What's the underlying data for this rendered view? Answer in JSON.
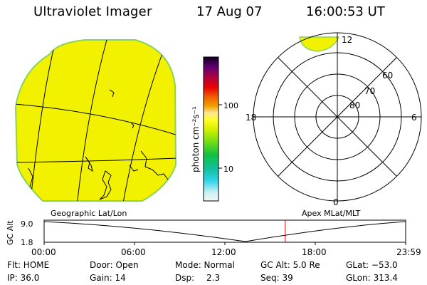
{
  "header": {
    "title": "Ultraviolet Imager",
    "date": "17 Aug 07",
    "time": "16:00:53 UT"
  },
  "colorbar": {
    "unit_label": "photon cm⁻²s⁻¹",
    "ticks": [
      {
        "label": "100",
        "value": 100
      },
      {
        "label": "10",
        "value": 10
      }
    ]
  },
  "polar_plot": {
    "mlt_labels": {
      "top": "12",
      "left": "18",
      "right": "6",
      "bottom": "0"
    },
    "lat_labels": [
      "60",
      "70",
      "80"
    ]
  },
  "timeline": {
    "left_title": "Geographic Lat/Lon",
    "right_title": "Apex MLat/MLT",
    "axis_label": "GC Alt",
    "y_ticks": [
      "9.0",
      "1.8"
    ],
    "x_ticks": [
      "00:00",
      "06:00",
      "12:00",
      "18:00",
      "23:59"
    ],
    "current_time_fraction": 0.667
  },
  "info": {
    "flt": "Flt: HOME",
    "ip": "IP: 36.0",
    "door": "Door: Open",
    "gain": "Gain: 14",
    "mode": "Mode: Normal",
    "dsp_label": "Dsp:",
    "dsp_value": "2.3",
    "gc_alt": "GC Alt: 5.0 Re",
    "seq": "Seq: 39",
    "glat": "GLat: −53.0",
    "glon": "GLon: 313.4"
  },
  "colors": {
    "image_fill": "#f2f200",
    "image_edge": "#8ad25a",
    "current_time_marker": "#d40000"
  }
}
